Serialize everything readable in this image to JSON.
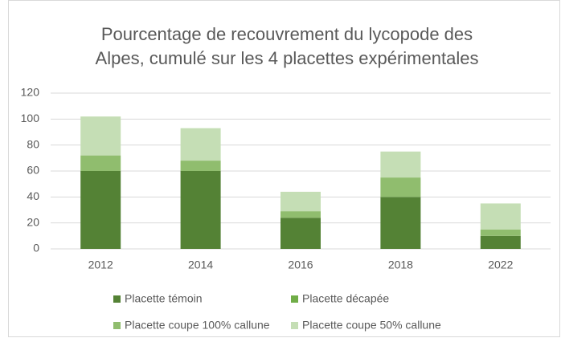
{
  "chart_data": {
    "type": "bar",
    "stacked": true,
    "title": [
      "Pourcentage de recouvrement du lycopode des",
      "Alpes, cumulé sur les 4 placettes expérimentales"
    ],
    "categories": [
      "2012",
      "2014",
      "2016",
      "2018",
      "2022"
    ],
    "series": [
      {
        "name": "Placette témoin",
        "color": "#548235",
        "values": [
          60,
          60,
          24,
          40,
          10
        ]
      },
      {
        "name": "Placette décapée",
        "color": "#70ad47",
        "values": [
          0,
          0,
          0,
          0,
          0
        ]
      },
      {
        "name": "Placette coupe 100% callune",
        "color": "#90bd6e",
        "values": [
          12,
          8,
          5,
          15,
          5
        ]
      },
      {
        "name": "Placette coupe 50% callune",
        "color": "#c5deb5",
        "values": [
          30,
          25,
          15,
          20,
          20
        ]
      }
    ],
    "ylim": [
      0,
      120
    ],
    "yticks": [
      0,
      20,
      40,
      60,
      80,
      100,
      120
    ],
    "grid": true,
    "legend": "bottom"
  }
}
